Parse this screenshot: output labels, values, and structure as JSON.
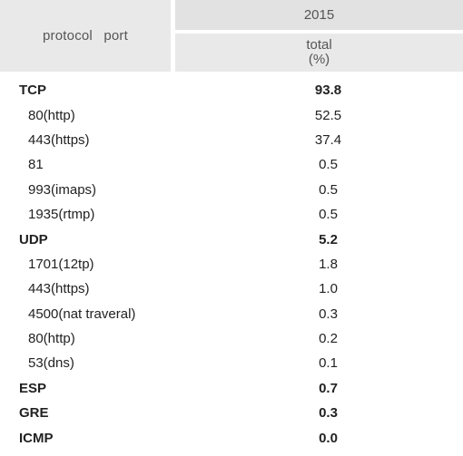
{
  "header": {
    "protocol_port": "protocol   port",
    "year": "2015",
    "total_line1": "total",
    "total_line2": "(%)"
  },
  "rows": [
    {
      "label": "TCP",
      "value": "93.8",
      "bold": true
    },
    {
      "label": "80(http)",
      "value": "52.5",
      "bold": false
    },
    {
      "label": "443(https)",
      "value": "37.4",
      "bold": false
    },
    {
      "label": "81",
      "value": "0.5",
      "bold": false
    },
    {
      "label": "993(imaps)",
      "value": "0.5",
      "bold": false
    },
    {
      "label": "1935(rtmp)",
      "value": "0.5",
      "bold": false
    },
    {
      "label": "UDP",
      "value": "5.2",
      "bold": true
    },
    {
      "label": "1701(12tp)",
      "value": "1.8",
      "bold": false
    },
    {
      "label": "443(https)",
      "value": "1.0",
      "bold": false
    },
    {
      "label": "4500(nat traveral)",
      "value": "0.3",
      "bold": false
    },
    {
      "label": "80(http)",
      "value": "0.2",
      "bold": false
    },
    {
      "label": "53(dns)",
      "value": "0.1",
      "bold": false
    },
    {
      "label": "ESP",
      "value": "0.7",
      "bold": true
    },
    {
      "label": "GRE",
      "value": "0.3",
      "bold": true
    },
    {
      "label": "ICMP",
      "value": "0.0",
      "bold": true
    }
  ]
}
